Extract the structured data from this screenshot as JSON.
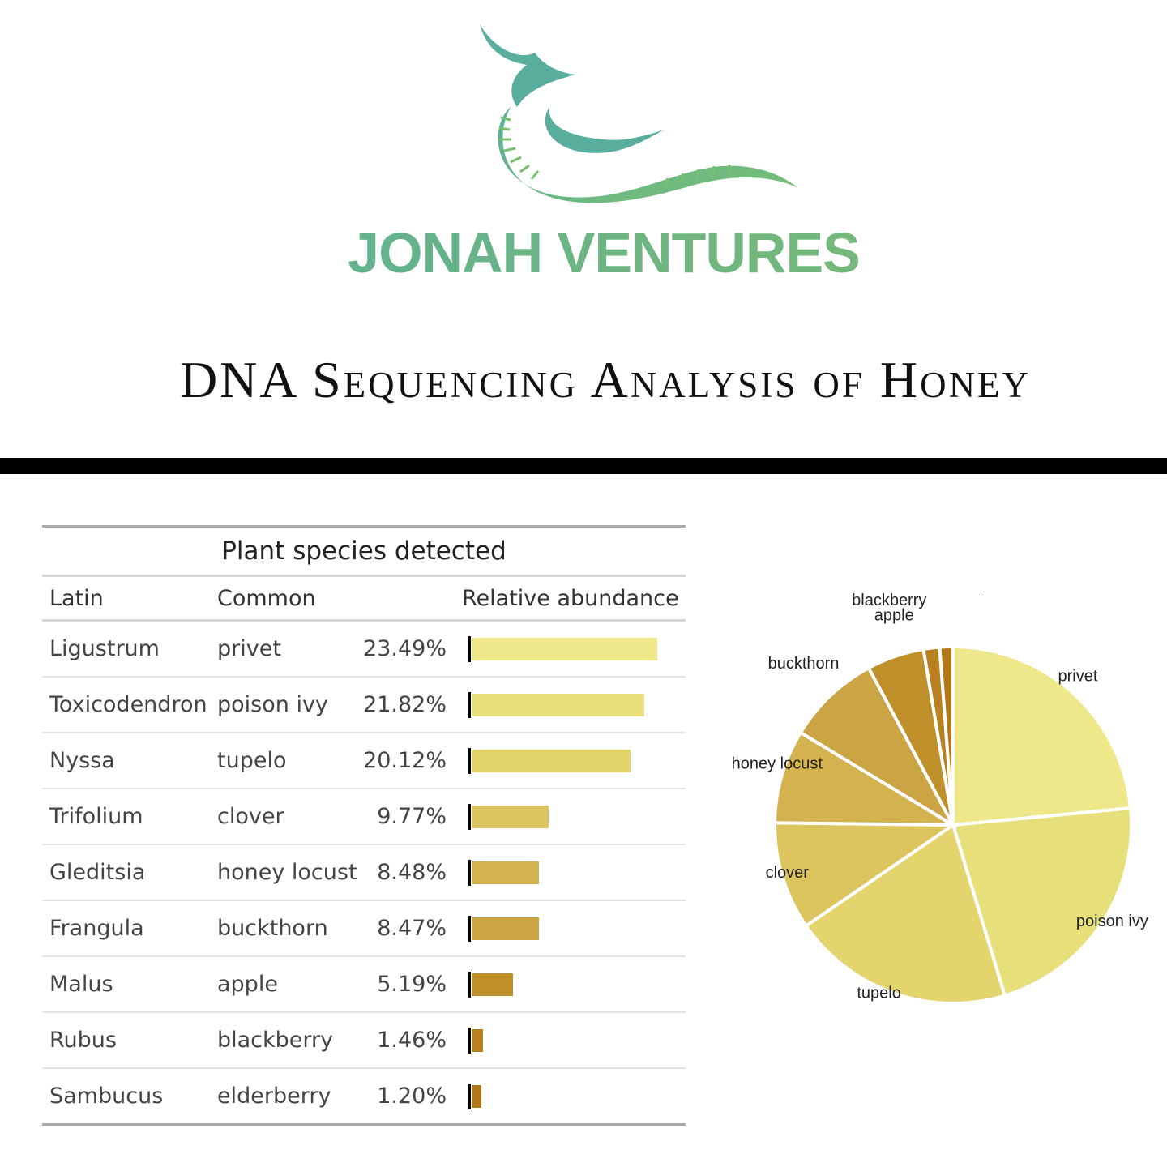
{
  "header": {
    "brand": "JONAH VENTURES",
    "report_title": "DNA Sequencing Analysis of Honey"
  },
  "colors": {
    "logo_teal": "#5aae9e",
    "logo_green": "#78bf70",
    "divider": "#000000",
    "axis_line": "#000000"
  },
  "table": {
    "caption": "Plant species detected",
    "columns": {
      "latin": "Latin",
      "common": "Common",
      "abundance": "Relative abundance"
    }
  },
  "chart_data": [
    {
      "type": "table",
      "title": "Plant species detected",
      "columns": [
        "Latin",
        "Common",
        "Relative abundance"
      ],
      "rows": [
        {
          "latin": "Ligustrum",
          "common": "privet",
          "pct": "23.49%",
          "value": 23.49,
          "color": "#eee88a"
        },
        {
          "latin": "Toxicodendron",
          "common": "poison ivy",
          "pct": "21.82%",
          "value": 21.82,
          "color": "#e6df7a"
        },
        {
          "latin": "Nyssa",
          "common": "tupelo",
          "pct": "20.12%",
          "value": 20.12,
          "color": "#e3d46e"
        },
        {
          "latin": "Trifolium",
          "common": "clover",
          "pct": "9.77%",
          "value": 9.77,
          "color": "#dcc55f"
        },
        {
          "latin": "Gleditsia",
          "common": "honey locust",
          "pct": "8.48%",
          "value": 8.48,
          "color": "#d4b250"
        },
        {
          "latin": "Frangula",
          "common": "buckthorn",
          "pct": "8.47%",
          "value": 8.47,
          "color": "#cba544"
        },
        {
          "latin": "Malus",
          "common": "apple",
          "pct": "5.19%",
          "value": 5.19,
          "color": "#bf8f2a"
        },
        {
          "latin": "Rubus",
          "common": "blackberry",
          "pct": "1.46%",
          "value": 1.46,
          "color": "#b8801f"
        },
        {
          "latin": "Sambucus",
          "common": "elderberry",
          "pct": "1.20%",
          "value": 1.2,
          "color": "#b07818"
        }
      ]
    },
    {
      "type": "pie",
      "labels": [
        "privet",
        "poison ivy",
        "tupelo",
        "clover",
        "honey locust",
        "buckthorn",
        "apple",
        "blackberry",
        "elderberry"
      ],
      "values": [
        23.49,
        21.82,
        20.12,
        9.77,
        8.48,
        8.47,
        5.19,
        1.46,
        1.2
      ],
      "colors": [
        "#eee88a",
        "#e6df7a",
        "#e3d46e",
        "#dcc55f",
        "#d4b250",
        "#cba544",
        "#bf8f2a",
        "#b8801f",
        "#b07818"
      ],
      "start": "12 o'clock",
      "direction": "clockwise"
    }
  ]
}
